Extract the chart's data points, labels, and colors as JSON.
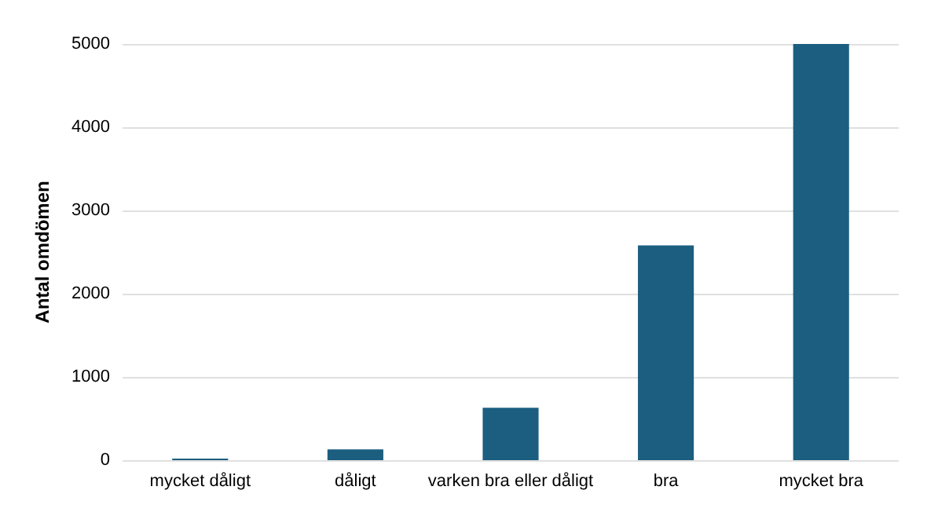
{
  "chart_data": {
    "type": "bar",
    "ylabel": "Antal omdömen",
    "categories": [
      "mycket dåligt",
      "dåligt",
      "varken bra eller dåligt",
      "bra",
      "mycket bra"
    ],
    "values": [
      20,
      130,
      630,
      2580,
      5000
    ],
    "color": "#1b5e80",
    "ylim": [
      0,
      5000
    ],
    "yticks": [
      0,
      1000,
      2000,
      3000,
      4000,
      5000
    ],
    "grid": "y"
  }
}
